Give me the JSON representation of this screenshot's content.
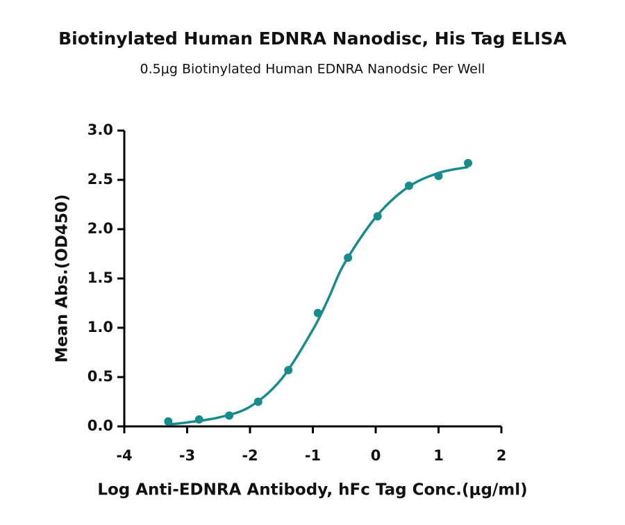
{
  "chart_data": {
    "type": "scatter",
    "title": "Biotinylated Human EDNRA Nanodisc, His Tag ELISA",
    "subtitle": "0.5μg Biotinylated Human EDNRA Nanodsic Per Well",
    "x_label": "Log Anti-EDNRA Antibody, hFc Tag Conc.(μg/ml)",
    "y_label": "Mean Abs.(OD450)",
    "xlim": [
      -4,
      2
    ],
    "xticks": [
      -4,
      -3,
      -2,
      -1,
      0,
      1,
      2
    ],
    "ylim": [
      0,
      3
    ],
    "yticks": [
      {
        "value": 0,
        "label": "0.0"
      },
      0.5,
      {
        "value": 1,
        "label": "1.0"
      },
      1.5,
      {
        "value": 2,
        "label": "2.0"
      },
      2.5,
      {
        "value": 3,
        "label": "3.0"
      }
    ],
    "series": [
      {
        "mode": "points",
        "color": "#178c8c",
        "x": [
          -3.3,
          -2.81,
          -2.33,
          -1.87,
          -1.39,
          -0.92,
          -0.44,
          0.03,
          0.53,
          1.0,
          1.47
        ],
        "values": [
          0.05,
          0.07,
          0.11,
          0.25,
          0.57,
          1.15,
          1.71,
          2.13,
          2.44,
          2.54,
          2.67
        ]
      },
      {
        "mode": "curve",
        "color": "#178c8c",
        "x": [
          -3.3,
          -3,
          -2.5,
          -2,
          -1.5,
          -1,
          -0.75,
          -0.5,
          0,
          0.5,
          1,
          1.47
        ],
        "values": [
          0.02,
          0.04,
          0.09,
          0.2,
          0.48,
          0.98,
          1.3,
          1.65,
          2.12,
          2.42,
          2.57,
          2.63
        ]
      }
    ]
  }
}
